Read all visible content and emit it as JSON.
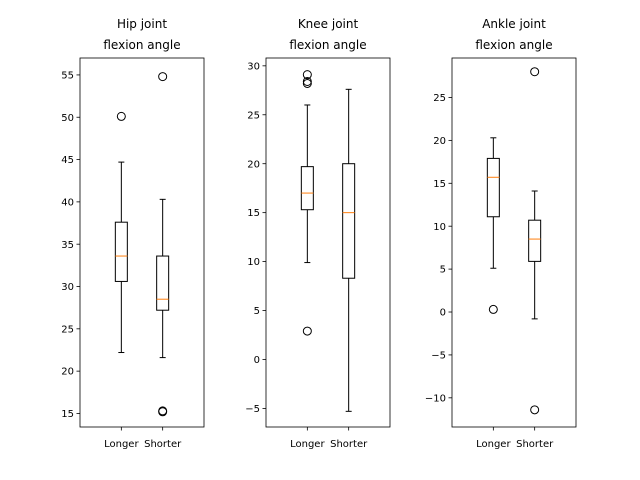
{
  "chart_data": [
    {
      "type": "box",
      "title_lines": [
        "Hip joint",
        "flexion angle"
      ],
      "categories": [
        "Longer",
        "Shorter"
      ],
      "ylim": [
        13.4,
        57.0
      ],
      "yticks": [
        15,
        20,
        25,
        30,
        35,
        40,
        45,
        50,
        55
      ],
      "grid": false,
      "boxes": [
        {
          "category": "Longer",
          "whislo": 22.2,
          "q1": 30.6,
          "med": 33.6,
          "q3": 37.6,
          "whishi": 44.7,
          "fliers": [
            50.1
          ]
        },
        {
          "category": "Shorter",
          "whislo": 21.6,
          "q1": 27.2,
          "med": 28.5,
          "q3": 33.6,
          "whishi": 40.3,
          "fliers": [
            54.8,
            15.3,
            15.2
          ]
        }
      ]
    },
    {
      "type": "box",
      "title_lines": [
        "Knee joint",
        "flexion angle"
      ],
      "categories": [
        "Longer",
        "Shorter"
      ],
      "ylim": [
        -6.9,
        30.8
      ],
      "yticks": [
        -5,
        0,
        5,
        10,
        15,
        20,
        25,
        30
      ],
      "grid": false,
      "boxes": [
        {
          "category": "Longer",
          "whislo": 9.9,
          "q1": 15.3,
          "med": 17.0,
          "q3": 19.7,
          "whishi": 26.0,
          "fliers": [
            29.1,
            28.4,
            28.2,
            2.9
          ]
        },
        {
          "category": "Shorter",
          "whislo": -5.3,
          "q1": 8.3,
          "med": 15.0,
          "q3": 20.0,
          "whishi": 27.6,
          "fliers": []
        }
      ]
    },
    {
      "type": "box",
      "title_lines": [
        "Ankle joint",
        "flexion angle"
      ],
      "categories": [
        "Longer",
        "Shorter"
      ],
      "ylim": [
        -13.4,
        29.6
      ],
      "yticks": [
        -10,
        -5,
        0,
        5,
        10,
        15,
        20,
        25
      ],
      "grid": false,
      "boxes": [
        {
          "category": "Longer",
          "whislo": 5.1,
          "q1": 11.1,
          "med": 15.7,
          "q3": 17.9,
          "whishi": 20.3,
          "fliers": [
            0.3
          ]
        },
        {
          "category": "Shorter",
          "whislo": -0.8,
          "q1": 5.9,
          "med": 8.5,
          "q3": 10.7,
          "whishi": 14.1,
          "fliers": [
            28.0,
            -11.4
          ]
        }
      ]
    }
  ],
  "colors": {
    "box": "#000000",
    "median": "#ff7f0e",
    "flier": "#000000"
  }
}
